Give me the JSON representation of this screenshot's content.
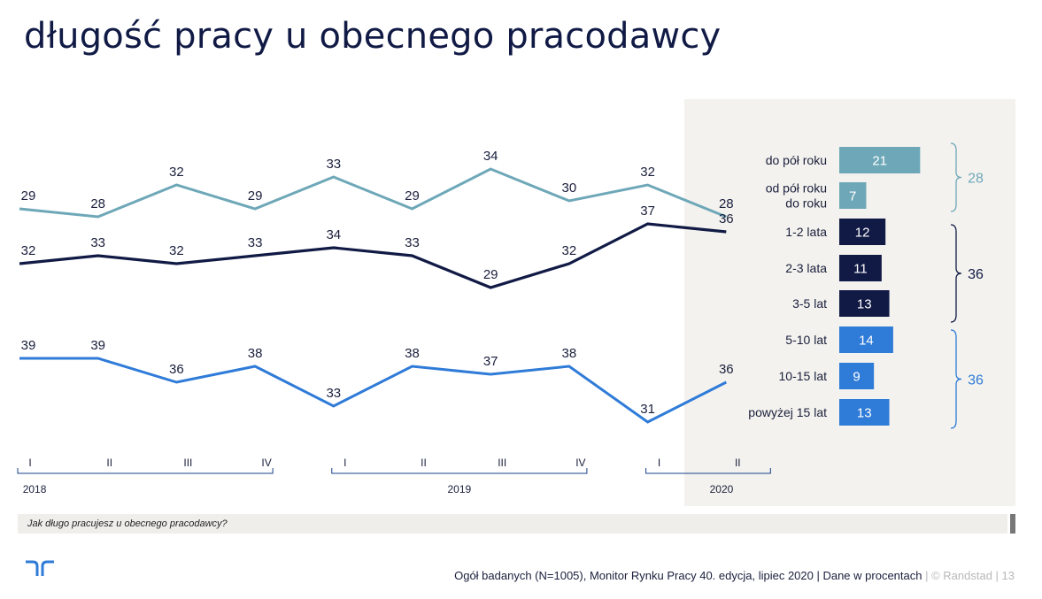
{
  "title": "długość pracy u obecnego pracodawcy",
  "chart_data": [
    {
      "type": "line",
      "title": "",
      "x": [
        "I",
        "II",
        "III",
        "IV",
        "I",
        "II",
        "III",
        "IV",
        "I",
        "II"
      ],
      "year_groups": [
        {
          "label": "2018",
          "from": 0,
          "to": 3
        },
        {
          "label": "2019",
          "from": 4,
          "to": 7
        },
        {
          "label": "2020",
          "from": 8,
          "to": 9
        }
      ],
      "series": [
        {
          "values": [
            29,
            28,
            32,
            29,
            33,
            29,
            34,
            30,
            32,
            28
          ],
          "color": "#6ea8b8"
        },
        {
          "values": [
            32,
            33,
            32,
            33,
            34,
            33,
            29,
            32,
            37,
            36
          ],
          "color": "#111a45"
        },
        {
          "values": [
            39,
            39,
            36,
            38,
            33,
            38,
            37,
            38,
            31,
            36
          ],
          "color": "#2f7bd8"
        }
      ]
    },
    {
      "type": "bar",
      "title": "",
      "categories": [
        [
          "do pół roku"
        ],
        [
          "od pół roku",
          "do roku"
        ],
        [
          "1-2 lata"
        ],
        [
          "2-3 lata"
        ],
        [
          "3-5 lat"
        ],
        [
          "5-10 lat"
        ],
        [
          "10-15 lat"
        ],
        [
          "powyżej 15 lat"
        ]
      ],
      "values": [
        21,
        7,
        12,
        11,
        13,
        14,
        9,
        13
      ],
      "colors": [
        "#6ea8b8",
        "#6ea8b8",
        "#111a45",
        "#111a45",
        "#111a45",
        "#2f7bd8",
        "#2f7bd8",
        "#2f7bd8"
      ],
      "groups": [
        {
          "label": "28",
          "from": 0,
          "to": 1,
          "color": "#6ea8b8"
        },
        {
          "label": "36",
          "from": 2,
          "to": 4,
          "color": "#111a45"
        },
        {
          "label": "36",
          "from": 5,
          "to": 7,
          "color": "#2f7bd8"
        }
      ]
    }
  ],
  "question": "Jak długo pracujesz u obecnego pracodawcy?",
  "footer": {
    "source": "Ogół badanych (N=1005), Monitor Rynku Pracy 40. edycja, lipiec 2020 | Dane w procentach",
    "brand": " | © Randstad  |  13"
  },
  "colors": {
    "accent_teal": "#6ea8b8",
    "accent_navy": "#111a45",
    "accent_blue": "#2f7bd8",
    "panel_bg": "#f3f2ee"
  }
}
